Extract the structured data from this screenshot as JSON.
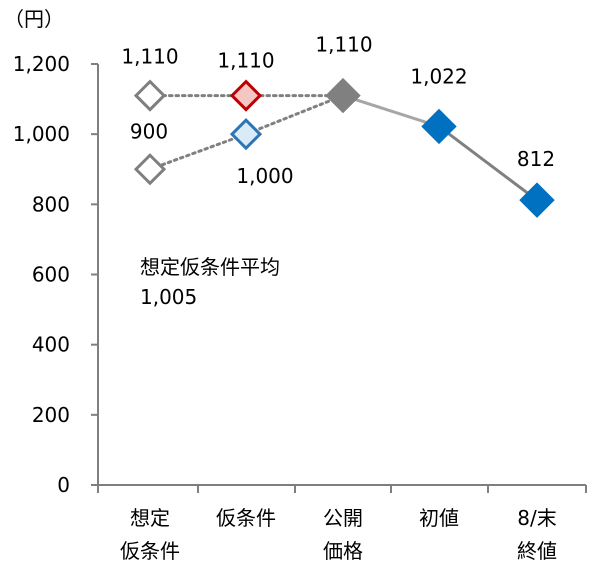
{
  "chart_data": {
    "type": "line",
    "unit_label": "（円）",
    "categories": [
      [
        "想定",
        "仮条件"
      ],
      [
        "仮条件"
      ],
      [
        "公開",
        "価格"
      ],
      [
        "初値"
      ],
      [
        "8/末",
        "終値"
      ]
    ],
    "ylim": [
      0,
      1200
    ],
    "yticks": [
      0,
      200,
      400,
      600,
      800,
      1000,
      1200
    ],
    "ytick_labels": [
      "0",
      "200",
      "400",
      "600",
      "800",
      "1,000",
      "1,200"
    ],
    "grid": false,
    "series": [
      {
        "role": "upper-range",
        "style": "dotted",
        "points": [
          {
            "x": 0,
            "y": 1110,
            "label": "1,110",
            "marker_fill": "#ffffff",
            "marker_stroke": "#7f7f7f"
          },
          {
            "x": 1,
            "y": 1110,
            "label": "1,110",
            "marker_fill": "#f4c7c3",
            "marker_stroke": "#c00000"
          },
          {
            "x": 2,
            "y": 1110
          }
        ]
      },
      {
        "role": "lower-range",
        "style": "dotted",
        "points": [
          {
            "x": 0,
            "y": 900,
            "label": "900",
            "marker_fill": "#ffffff",
            "marker_stroke": "#7f7f7f"
          },
          {
            "x": 1,
            "y": 1000,
            "label": "1,000",
            "marker_fill": "#d9ebf7",
            "marker_stroke": "#2e75b6"
          },
          {
            "x": 2,
            "y": 1110
          }
        ]
      },
      {
        "role": "actual",
        "style": "solid",
        "points": [
          {
            "x": 2,
            "y": 1110,
            "label": "1,110",
            "marker_fill": "#808080",
            "marker_stroke": "#808080"
          },
          {
            "x": 3,
            "y": 1022,
            "label": "1,022",
            "marker_fill": "#0070c0",
            "marker_stroke": "#0070c0"
          },
          {
            "x": 4,
            "y": 812,
            "label": "812",
            "marker_fill": "#0070c0",
            "marker_stroke": "#0070c0"
          }
        ]
      }
    ],
    "annotation": {
      "lines": [
        "想定仮条件平均",
        "1,005"
      ]
    },
    "colors": {
      "axis": "#7f7f7f",
      "dotted_line": "#808080",
      "solid_line_light": "#a6a6a6",
      "solid_line_dark": "#808080"
    }
  }
}
